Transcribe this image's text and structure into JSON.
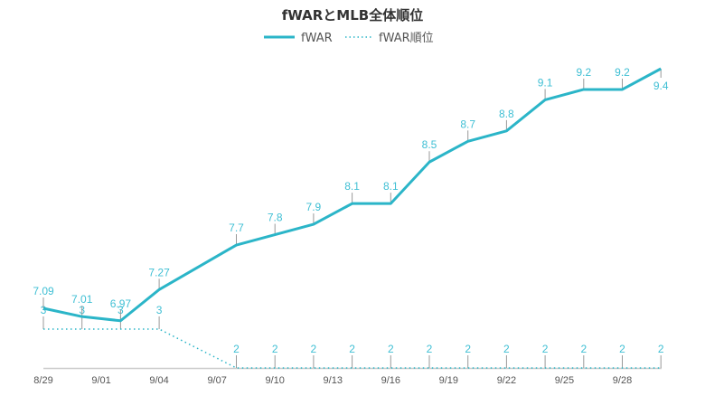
{
  "chart_data": {
    "type": "line",
    "title": "fWARとMLB全体順位",
    "xlabel": "",
    "ylabel": "",
    "legend_position": "top-center",
    "grid": false,
    "colors": {
      "fwar": "#2bb5c8",
      "rank": "#2bb5c8",
      "labels": "#3fbfd4",
      "axis": "#cccccc",
      "tick_marks": "#999999",
      "tick_text": "#555555",
      "title": "#333333"
    },
    "x_ticks": [
      "8/29",
      "9/01",
      "9/04",
      "9/07",
      "9/10",
      "9/13",
      "9/16",
      "9/19",
      "9/22",
      "9/25",
      "9/28"
    ],
    "x": [
      "8/29",
      "8/31",
      "9/02",
      "9/04",
      "9/08",
      "9/10",
      "9/12",
      "9/14",
      "9/16",
      "9/18",
      "9/20",
      "9/22",
      "9/24",
      "9/26",
      "9/28",
      "9/30"
    ],
    "x_day_offset": [
      0,
      2,
      4,
      6,
      10,
      12,
      14,
      16,
      18,
      20,
      22,
      24,
      26,
      28,
      30,
      32
    ],
    "x_tick_day_offset": [
      0,
      3,
      6,
      9,
      12,
      15,
      18,
      21,
      24,
      27,
      30
    ],
    "series": [
      {
        "name": "fWAR",
        "style": "solid",
        "values": [
          7.09,
          7.01,
          6.97,
          7.27,
          7.7,
          7.8,
          7.9,
          8.1,
          8.1,
          8.5,
          8.7,
          8.8,
          9.1,
          9.2,
          9.2,
          9.4
        ],
        "labels": [
          "7.09",
          "7.01",
          "6.97",
          "7.27",
          "7.7",
          "7.8",
          "7.9",
          "8.1",
          "8.1",
          "8.5",
          "8.7",
          "8.8",
          "9.1",
          "9.2",
          "9.2",
          "9.4"
        ],
        "ylim": [
          6.97,
          9.4
        ]
      },
      {
        "name": "fWAR順位",
        "style": "dotted",
        "values": [
          3,
          3,
          3,
          3,
          2,
          2,
          2,
          2,
          2,
          2,
          2,
          2,
          2,
          2,
          2,
          2
        ],
        "labels": [
          "3",
          "3",
          "3",
          "3",
          "2",
          "2",
          "2",
          "2",
          "2",
          "2",
          "2",
          "2",
          "2",
          "2",
          "2",
          "2"
        ],
        "ylim": [
          2,
          3
        ]
      }
    ]
  }
}
